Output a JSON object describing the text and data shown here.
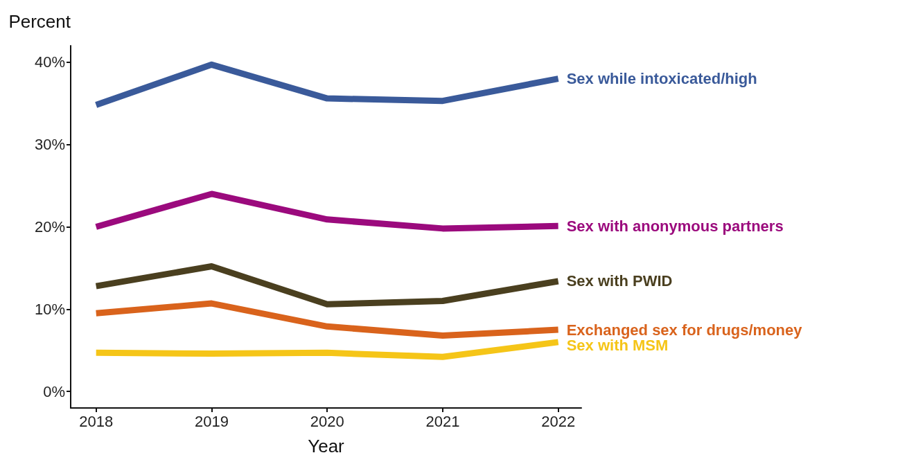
{
  "chart_data": {
    "type": "line",
    "ylabel": "Percent",
    "xlabel": "Year",
    "x": [
      2018,
      2019,
      2020,
      2021,
      2022
    ],
    "xlim": [
      2017.78,
      2022.2
    ],
    "xticks": [
      2018,
      2019,
      2020,
      2021,
      2022
    ],
    "ylim": [
      -2,
      42
    ],
    "yticks": [
      {
        "value": 0,
        "label": "0%"
      },
      {
        "value": 10,
        "label": "10%"
      },
      {
        "value": 20,
        "label": "20%"
      },
      {
        "value": 30,
        "label": "30%"
      },
      {
        "value": 40,
        "label": "40%"
      }
    ],
    "grid": false,
    "legend": false,
    "marker": "none",
    "line_style": "solid",
    "series": [
      {
        "name": "Sex while intoxicated/high",
        "color": "#3a5a9a",
        "values": [
          34.8,
          39.7,
          35.6,
          35.3,
          38.0
        ]
      },
      {
        "name": "Sex with anonymous partners",
        "color": "#9b0a7d",
        "values": [
          20.0,
          24.0,
          20.9,
          19.8,
          20.1
        ]
      },
      {
        "name": "Sex with PWID",
        "color": "#4a3f1f",
        "values": [
          12.8,
          15.2,
          10.6,
          11.0,
          13.4
        ]
      },
      {
        "name": "Exchanged sex for drugs/money",
        "color": "#d9631c",
        "values": [
          9.5,
          10.7,
          7.9,
          6.8,
          7.5
        ]
      },
      {
        "name": "Sex with MSM",
        "color": "#f5c518",
        "values": [
          4.7,
          4.6,
          4.7,
          4.2,
          6.0
        ]
      }
    ]
  }
}
